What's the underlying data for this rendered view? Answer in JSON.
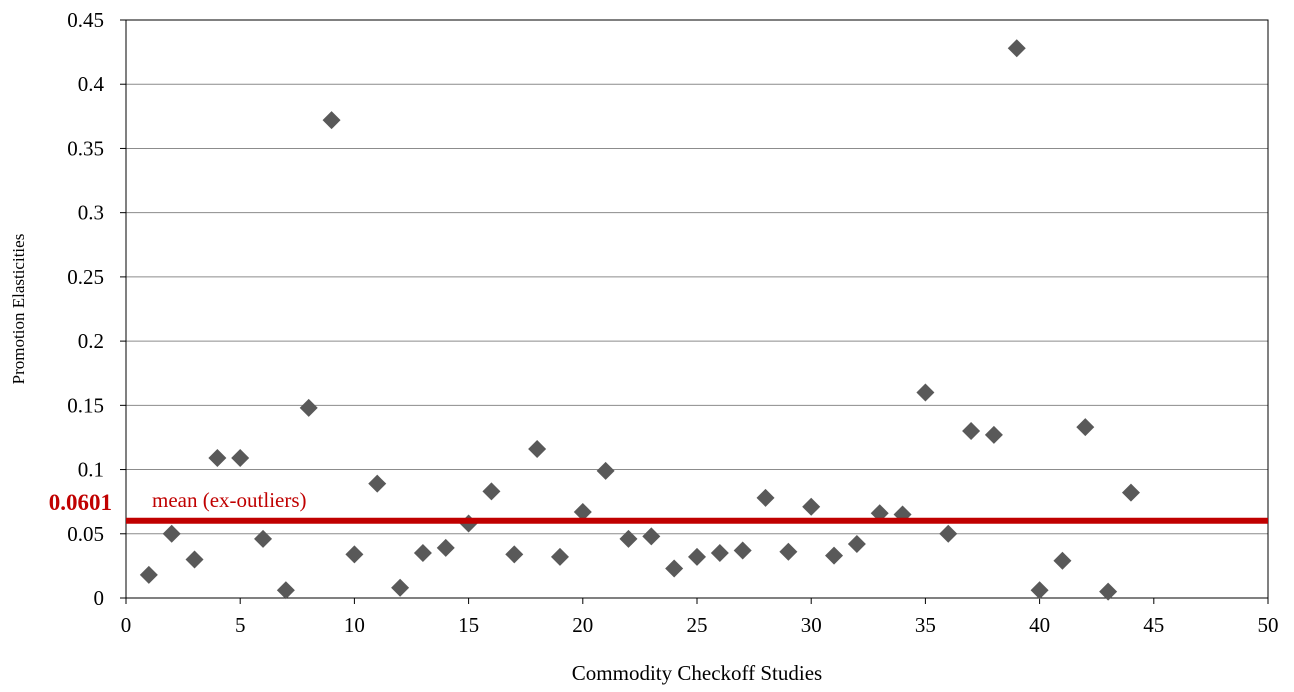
{
  "chart_data": {
    "type": "scatter",
    "title": "",
    "xlabel": "Commodity Checkoff Studies",
    "ylabel": "Promotion Elasticities",
    "xlim": [
      0,
      50
    ],
    "ylim": [
      0,
      0.45
    ],
    "x_ticks": [
      "0",
      "5",
      "10",
      "15",
      "20",
      "25",
      "30",
      "35",
      "40",
      "45",
      "50"
    ],
    "y_ticks": [
      "0",
      "0.05",
      "0.1",
      "0.15",
      "0.2",
      "0.25",
      "0.3",
      "0.35",
      "0.4",
      "0.45"
    ],
    "grid": "horizontal",
    "marker": "diamond",
    "marker_color": "#595959",
    "points": [
      {
        "x": 1,
        "y": 0.018
      },
      {
        "x": 2,
        "y": 0.05
      },
      {
        "x": 3,
        "y": 0.03
      },
      {
        "x": 4,
        "y": 0.109
      },
      {
        "x": 5,
        "y": 0.109
      },
      {
        "x": 6,
        "y": 0.046
      },
      {
        "x": 7,
        "y": 0.006
      },
      {
        "x": 8,
        "y": 0.148
      },
      {
        "x": 9,
        "y": 0.372
      },
      {
        "x": 10,
        "y": 0.034
      },
      {
        "x": 11,
        "y": 0.089
      },
      {
        "x": 12,
        "y": 0.008
      },
      {
        "x": 13,
        "y": 0.035
      },
      {
        "x": 14,
        "y": 0.039
      },
      {
        "x": 15,
        "y": 0.058
      },
      {
        "x": 16,
        "y": 0.083
      },
      {
        "x": 17,
        "y": 0.034
      },
      {
        "x": 18,
        "y": 0.116
      },
      {
        "x": 19,
        "y": 0.032
      },
      {
        "x": 20,
        "y": 0.067
      },
      {
        "x": 21,
        "y": 0.099
      },
      {
        "x": 22,
        "y": 0.046
      },
      {
        "x": 23,
        "y": 0.048
      },
      {
        "x": 24,
        "y": 0.023
      },
      {
        "x": 25,
        "y": 0.032
      },
      {
        "x": 26,
        "y": 0.035
      },
      {
        "x": 27,
        "y": 0.037
      },
      {
        "x": 28,
        "y": 0.078
      },
      {
        "x": 29,
        "y": 0.036
      },
      {
        "x": 30,
        "y": 0.071
      },
      {
        "x": 31,
        "y": 0.033
      },
      {
        "x": 32,
        "y": 0.042
      },
      {
        "x": 33,
        "y": 0.066
      },
      {
        "x": 34,
        "y": 0.065
      },
      {
        "x": 35,
        "y": 0.16
      },
      {
        "x": 36,
        "y": 0.05
      },
      {
        "x": 37,
        "y": 0.13
      },
      {
        "x": 38,
        "y": 0.127
      },
      {
        "x": 39,
        "y": 0.428
      },
      {
        "x": 40,
        "y": 0.006
      },
      {
        "x": 41,
        "y": 0.029
      },
      {
        "x": 42,
        "y": 0.133
      },
      {
        "x": 43,
        "y": 0.005
      },
      {
        "x": 44,
        "y": 0.082
      }
    ],
    "reference_line": {
      "y": 0.0601,
      "label": "mean (ex-outliers)",
      "value_label": "0.0601",
      "color": "#C00000"
    }
  }
}
